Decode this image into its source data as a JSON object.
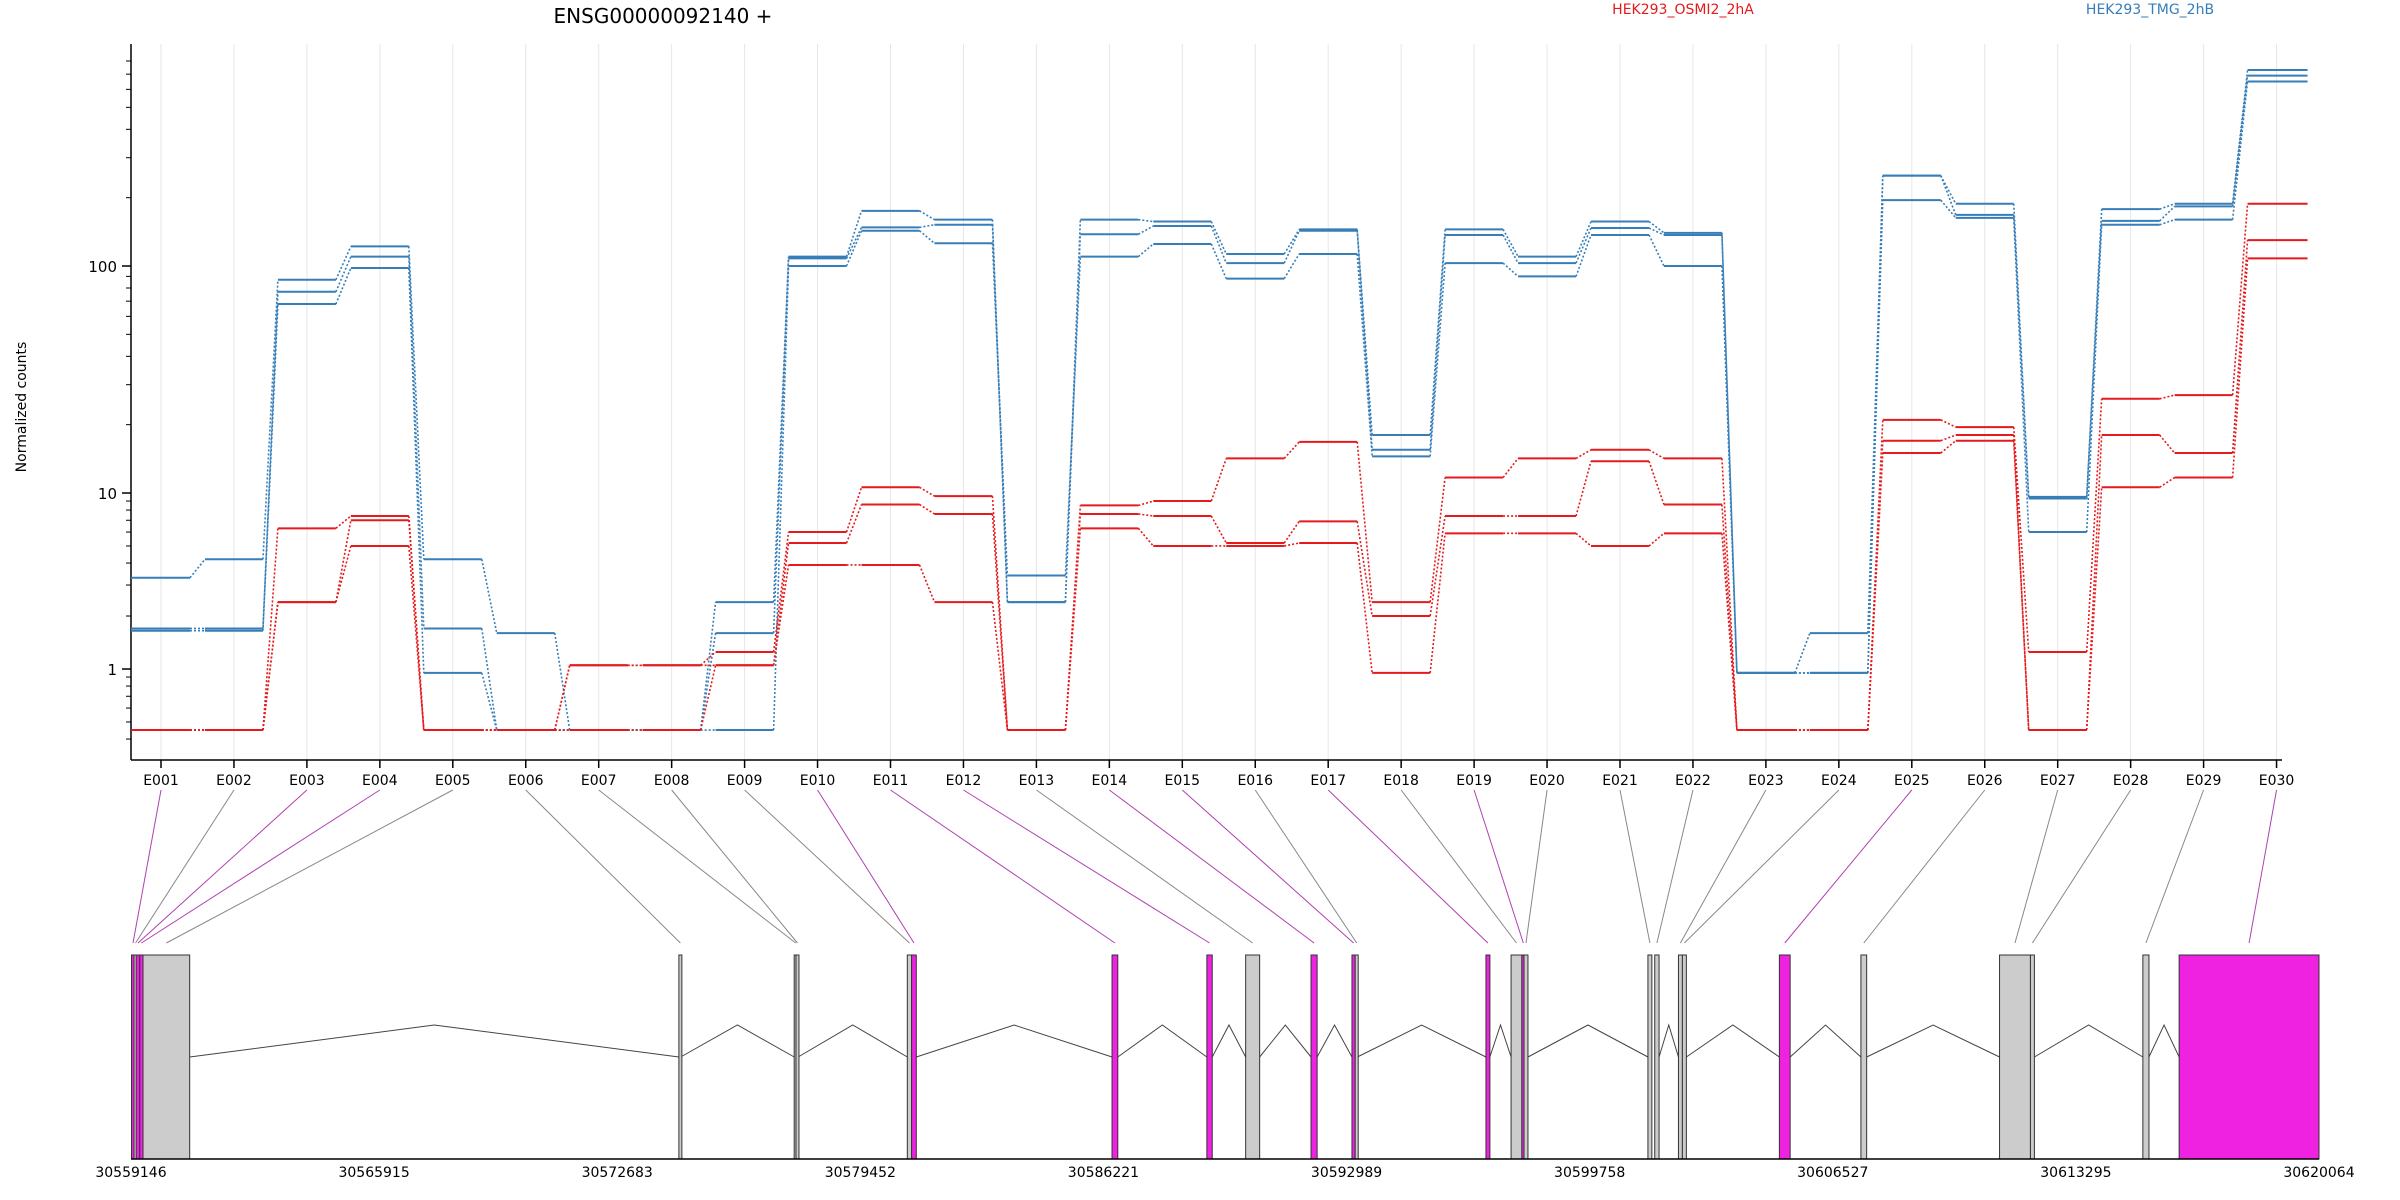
{
  "chart_data": {
    "type": "line",
    "title": "ENSG00000092140 +",
    "ylabel": "Normalized counts",
    "xlabel": "",
    "yscale": "log",
    "ylim": [
      0.35,
      900
    ],
    "yticks": [
      1,
      10,
      100
    ],
    "ytick_labels": [
      "1",
      "10",
      "100"
    ],
    "grid": "vertical-light",
    "legend_position": "top",
    "legend": [
      {
        "label": "HEK293_OSMI2_2hA",
        "color": "#e41a1c"
      },
      {
        "label": "HEK293_TMG_2hB",
        "color": "#377eb8"
      }
    ],
    "categories": [
      "E001",
      "E002",
      "E003",
      "E004",
      "E005",
      "E006",
      "E007",
      "E008",
      "E009",
      "E010",
      "E011",
      "E012",
      "E013",
      "E014",
      "E015",
      "E016",
      "E017",
      "E018",
      "E019",
      "E020",
      "E021",
      "E022",
      "E023",
      "E024",
      "E025",
      "E026",
      "E027",
      "E028",
      "E029",
      "E030"
    ],
    "series": [
      {
        "color": "#377eb8",
        "values": [
          3.3,
          4.2,
          87,
          122,
          4.2,
          1.6,
          0.45,
          0.45,
          2.4,
          110,
          175,
          160,
          2.4,
          160,
          157,
          113,
          145,
          18,
          145,
          110,
          157,
          140,
          0.95,
          1.6,
          250,
          188,
          9.3,
          178,
          188,
          730
        ]
      },
      {
        "color": "#377eb8",
        "values": [
          1.7,
          1.7,
          77,
          110,
          1.7,
          0.45,
          0.45,
          0.45,
          1.6,
          108,
          148,
          152,
          2.4,
          138,
          150,
          103,
          143,
          15.5,
          137,
          103,
          147,
          137,
          0.95,
          0.95,
          250,
          168,
          9.5,
          158,
          183,
          690
        ]
      },
      {
        "color": "#377eb8",
        "values": [
          1.65,
          1.65,
          68,
          98,
          0.95,
          0.45,
          0.45,
          0.45,
          0.45,
          100,
          143,
          126,
          3.4,
          110,
          125,
          88,
          113,
          14.5,
          103,
          90,
          137,
          100,
          0.95,
          0.95,
          195,
          163,
          6.0,
          152,
          160,
          650
        ]
      },
      {
        "color": "#e41a1c",
        "values": [
          0.45,
          0.45,
          6.3,
          7.4,
          0.45,
          0.45,
          1.05,
          1.05,
          1.25,
          6.0,
          10.6,
          9.6,
          0.45,
          8.5,
          9.0,
          14.2,
          16.8,
          2.4,
          11.7,
          14.2,
          15.5,
          14.2,
          0.45,
          0.45,
          21,
          19.5,
          1.25,
          26,
          27,
          188
        ]
      },
      {
        "color": "#e41a1c",
        "values": [
          0.45,
          0.45,
          2.4,
          7.0,
          0.45,
          0.45,
          1.05,
          1.05,
          1.05,
          5.2,
          8.6,
          7.6,
          0.45,
          7.6,
          7.4,
          5.2,
          6.9,
          2.0,
          7.4,
          7.4,
          13.8,
          8.6,
          0.45,
          0.45,
          17,
          18,
          0.45,
          18,
          15,
          130
        ]
      },
      {
        "color": "#e41a1c",
        "values": [
          0.45,
          0.45,
          2.4,
          5.0,
          0.45,
          0.45,
          0.45,
          0.45,
          1.05,
          3.9,
          3.9,
          2.4,
          0.45,
          6.3,
          5.0,
          5.0,
          5.2,
          0.95,
          5.9,
          5.9,
          5.0,
          5.9,
          0.45,
          0.45,
          15,
          17,
          0.45,
          10.6,
          11.7,
          108
        ]
      }
    ],
    "gene_model": {
      "coordinate_labels": [
        "30559146",
        "30565915",
        "30572683",
        "30579452",
        "30586221",
        "30592989",
        "30599758",
        "30606527",
        "30613295",
        "30620064"
      ],
      "exons": [
        {
          "id": "E001",
          "start": 30559160,
          "end": 30559230,
          "highlight": true
        },
        {
          "id": "E002",
          "start": 30559230,
          "end": 30559290,
          "highlight": false
        },
        {
          "id": "E003",
          "start": 30559290,
          "end": 30559390,
          "highlight": true
        },
        {
          "id": "E004",
          "start": 30559390,
          "end": 30559480,
          "highlight": true
        },
        {
          "id": "E005",
          "start": 30559480,
          "end": 30560780,
          "highlight": false
        },
        {
          "id": "E006",
          "start": 30574400,
          "end": 30574450,
          "highlight": false
        },
        {
          "id": "E007",
          "start": 30577610,
          "end": 30577660,
          "highlight": false
        },
        {
          "id": "E008",
          "start": 30577660,
          "end": 30577720,
          "highlight": false
        },
        {
          "id": "E009",
          "start": 30580760,
          "end": 30580880,
          "highlight": false
        },
        {
          "id": "E010",
          "start": 30580880,
          "end": 30581010,
          "highlight": true
        },
        {
          "id": "E011",
          "start": 30586460,
          "end": 30586620,
          "highlight": true
        },
        {
          "id": "E012",
          "start": 30589100,
          "end": 30589250,
          "highlight": true
        },
        {
          "id": "E013",
          "start": 30590180,
          "end": 30590570,
          "highlight": false
        },
        {
          "id": "E014",
          "start": 30592000,
          "end": 30592170,
          "highlight": true
        },
        {
          "id": "E015",
          "start": 30593140,
          "end": 30593230,
          "highlight": true
        },
        {
          "id": "E016",
          "start": 30593230,
          "end": 30593290,
          "highlight": false
        },
        {
          "id": "E017",
          "start": 30596870,
          "end": 30596980,
          "highlight": true
        },
        {
          "id": "E018",
          "start": 30597570,
          "end": 30597870,
          "highlight": false
        },
        {
          "id": "E019",
          "start": 30597870,
          "end": 30597930,
          "highlight": true
        },
        {
          "id": "E020",
          "start": 30597930,
          "end": 30598040,
          "highlight": false
        },
        {
          "id": "E021",
          "start": 30601380,
          "end": 30601490,
          "highlight": false
        },
        {
          "id": "E022",
          "start": 30601570,
          "end": 30601690,
          "highlight": false
        },
        {
          "id": "E023",
          "start": 30602230,
          "end": 30602340,
          "highlight": false
        },
        {
          "id": "E024",
          "start": 30602340,
          "end": 30602450,
          "highlight": false
        },
        {
          "id": "E025",
          "start": 30605040,
          "end": 30605340,
          "highlight": true
        },
        {
          "id": "E026",
          "start": 30607310,
          "end": 30607470,
          "highlight": false
        },
        {
          "id": "E027",
          "start": 30611170,
          "end": 30612030,
          "highlight": false
        },
        {
          "id": "E028",
          "start": 30612030,
          "end": 30612140,
          "highlight": false
        },
        {
          "id": "E029",
          "start": 30615160,
          "end": 30615330,
          "highlight": false
        },
        {
          "id": "E030",
          "start": 30616170,
          "end": 30620064,
          "highlight": true
        }
      ]
    }
  }
}
